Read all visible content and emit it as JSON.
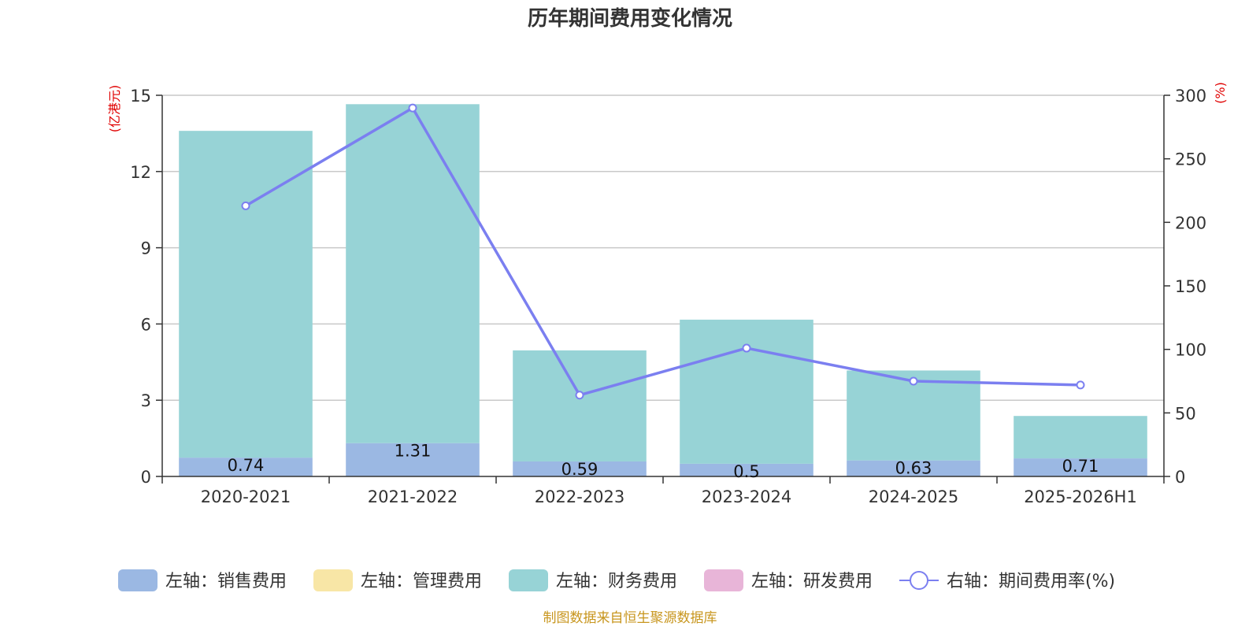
{
  "title": "历年期间费用变化情况",
  "left_unit": "(亿港元)",
  "right_unit": "(%)",
  "source": "制图数据来自恒生聚源数据库",
  "colors": {
    "sales": "#9bb8e3",
    "admin": "#f8e6a6",
    "finance": "#97d3d6",
    "rd": "#e8b5d8",
    "rate": "#7b7ff0"
  },
  "legend": [
    {
      "key": "sales",
      "label": "左轴：销售费用",
      "kind": "box"
    },
    {
      "key": "admin",
      "label": "左轴：管理费用",
      "kind": "box"
    },
    {
      "key": "finance",
      "label": "左轴：财务费用",
      "kind": "box"
    },
    {
      "key": "rd",
      "label": "左轴：研发费用",
      "kind": "box"
    },
    {
      "key": "rate",
      "label": "右轴：期间费用率(%)",
      "kind": "line"
    }
  ],
  "chart_data": {
    "type": "bar",
    "stacked": true,
    "categories": [
      "2020-2021",
      "2021-2022",
      "2022-2023",
      "2023-2024",
      "2024-2025",
      "2025-2026H1"
    ],
    "series": [
      {
        "name": "左轴：销售费用",
        "key": "sales",
        "axis": "left",
        "values": [
          0.74,
          1.31,
          0.59,
          0.5,
          0.63,
          0.71
        ],
        "labels": [
          "0.74",
          "1.31",
          "0.59",
          "0.5",
          "0.63",
          "0.71"
        ]
      },
      {
        "name": "左轴：管理费用",
        "key": "admin",
        "axis": "left",
        "values": [
          0,
          0,
          0,
          0,
          0,
          0
        ]
      },
      {
        "name": "左轴：财务费用",
        "key": "finance",
        "axis": "left",
        "values": [
          12.86,
          13.34,
          4.37,
          5.67,
          3.54,
          1.67
        ]
      },
      {
        "name": "左轴：研发费用",
        "key": "rd",
        "axis": "left",
        "values": [
          0,
          0,
          0,
          0,
          0,
          0
        ]
      },
      {
        "name": "右轴：期间费用率(%)",
        "key": "rate",
        "axis": "right",
        "type": "line",
        "values": [
          213,
          290,
          64,
          101,
          75,
          72
        ]
      }
    ],
    "left_axis": {
      "min": 0,
      "max": 15,
      "ticks": [
        0,
        3,
        6,
        9,
        12,
        15
      ]
    },
    "right_axis": {
      "min": 0,
      "max": 300,
      "ticks": [
        0,
        50,
        100,
        150,
        200,
        250,
        300
      ]
    },
    "grid": true,
    "legend_position": "bottom"
  }
}
